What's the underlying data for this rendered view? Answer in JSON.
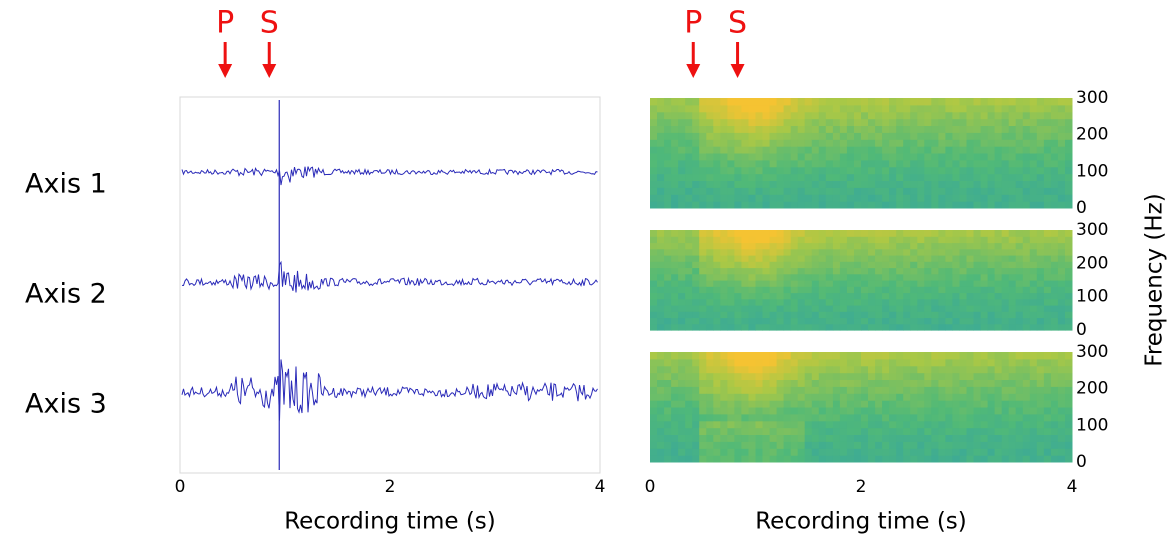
{
  "chart_data": [
    {
      "type": "waveform",
      "xlabel": "Recording time (s)",
      "xlim": [
        0,
        4
      ],
      "xticks": [
        0,
        2,
        4
      ],
      "rows": [
        "Axis 1",
        "Axis 2",
        "Axis 3"
      ],
      "markers": [
        {
          "label": "P",
          "x": 0.43
        },
        {
          "label": "S",
          "x": 0.85
        }
      ],
      "marker_color": "#ee1111"
    },
    {
      "type": "spectrogram",
      "xlabel": "Recording time (s)",
      "ylabel": "Frequency (Hz)",
      "xlim": [
        0,
        4
      ],
      "xticks": [
        0,
        2,
        4
      ],
      "ylim": [
        0,
        300
      ],
      "yticks": [
        0,
        100,
        200,
        300
      ],
      "panels": 3,
      "markers": [
        {
          "label": "P",
          "x": 0.41
        },
        {
          "label": "S",
          "x": 0.83
        }
      ],
      "marker_color": "#ee1111"
    }
  ]
}
